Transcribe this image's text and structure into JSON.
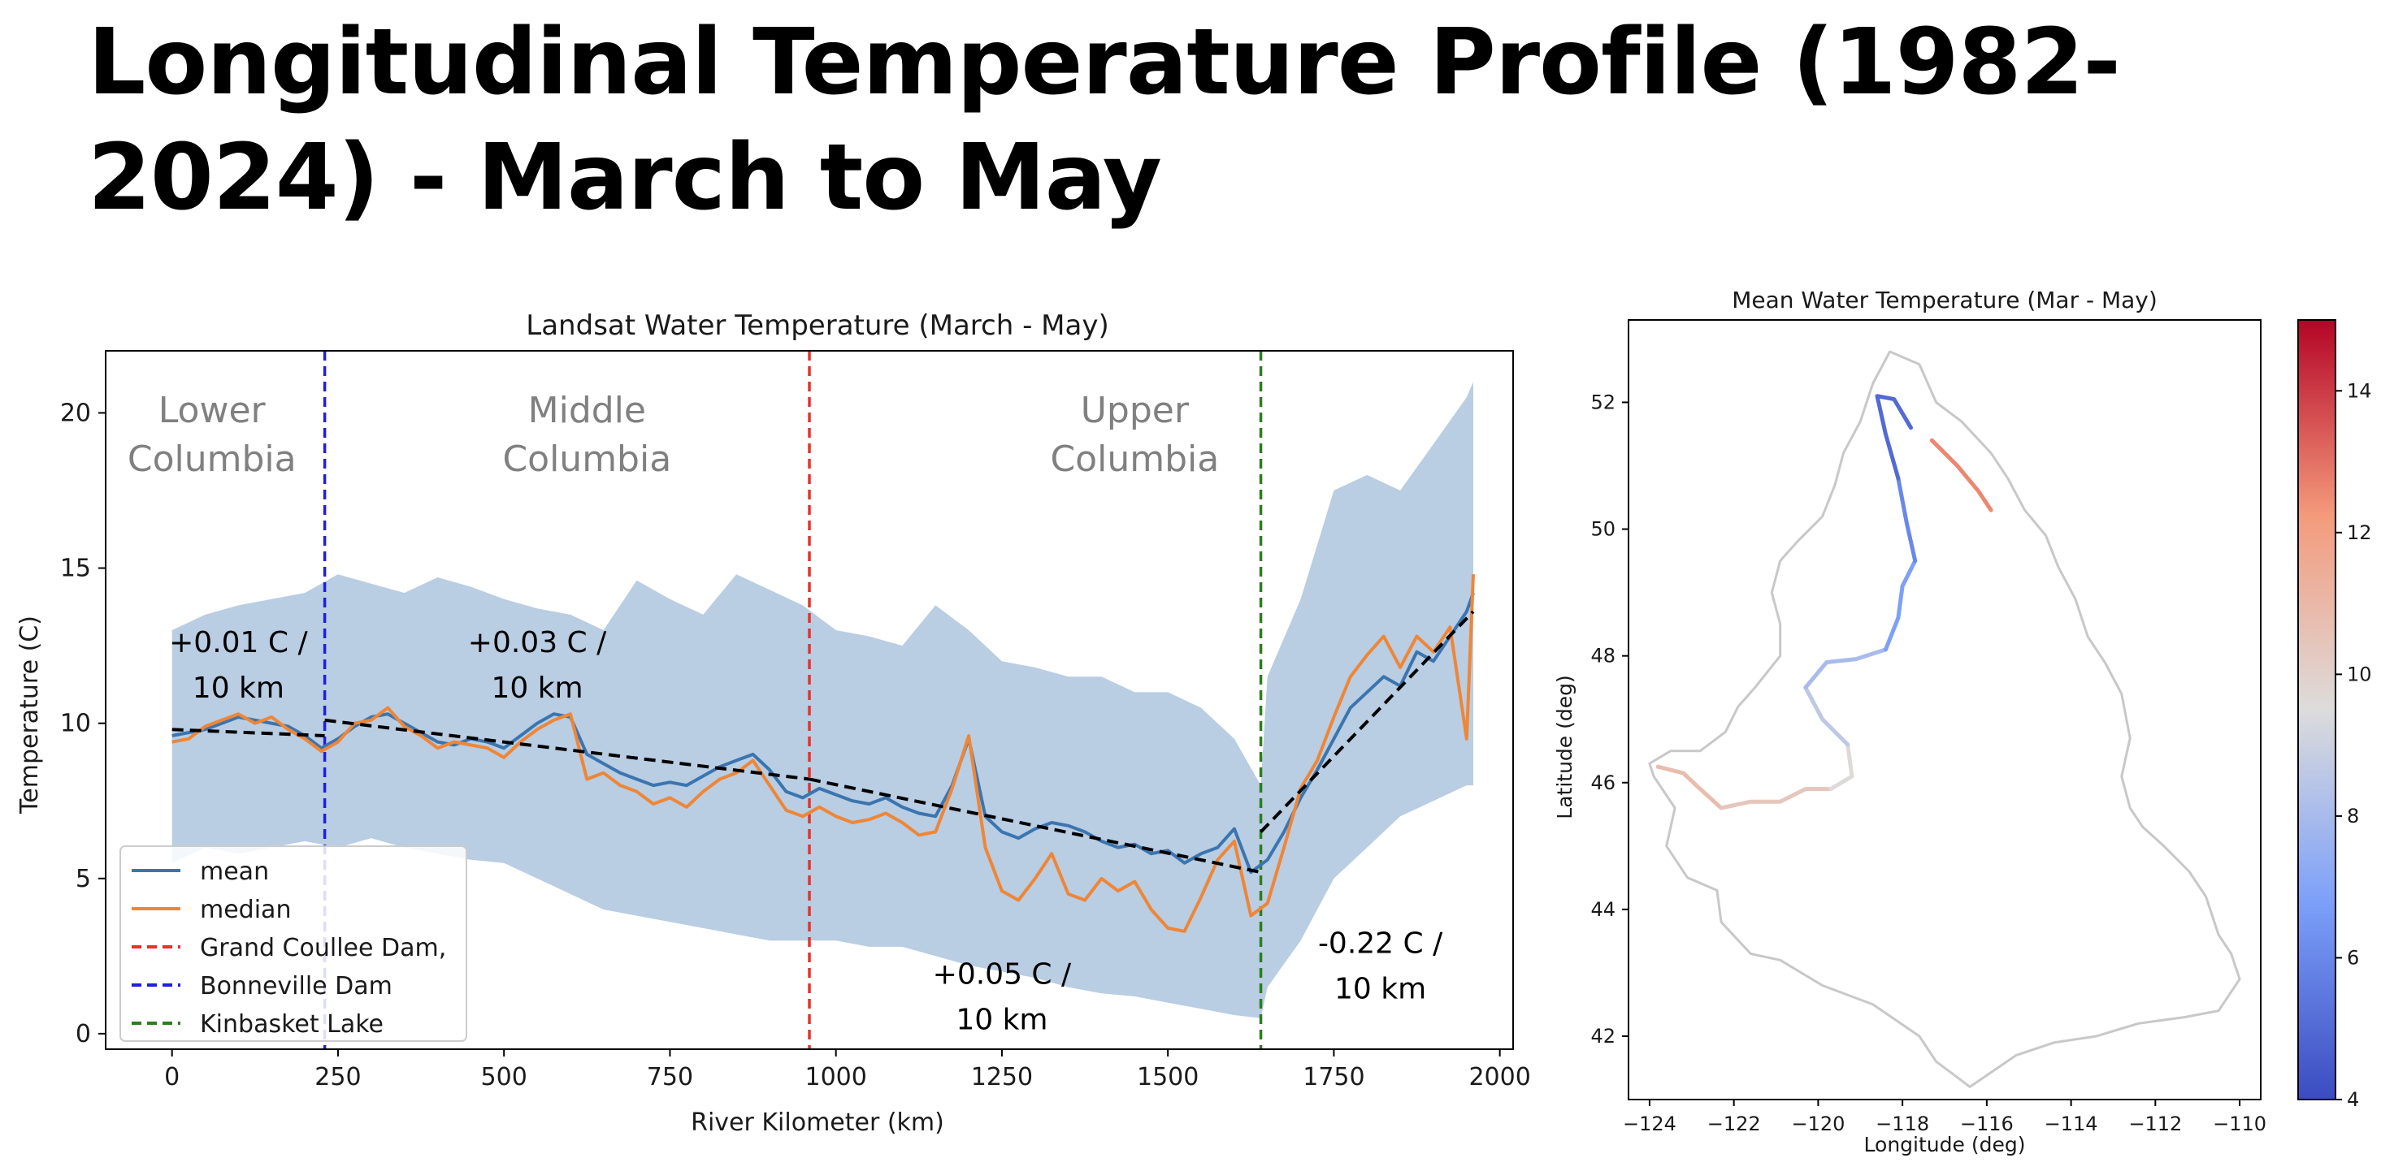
{
  "slide": {
    "title": "Longitudinal Temperature Profile (1982-2024) - March to May"
  },
  "colors": {
    "mean": "#3b75af",
    "median": "#ef8636",
    "band": "#b9cde3",
    "grand_coulee": "#e8322a",
    "bonneville": "#1f1fe0",
    "kinbasket": "#2e7d1e",
    "trend": "#000000",
    "region_label": "#808080"
  },
  "chart_data": [
    {
      "type": "line",
      "title": "Landsat Water Temperature (March - May)",
      "xlabel": "River Kilometer (km)",
      "ylabel": "Temperature (C)",
      "xlim": [
        -100,
        2020
      ],
      "ylim": [
        -0.5,
        22
      ],
      "xticks": [
        0,
        250,
        500,
        750,
        1000,
        1250,
        1500,
        1750,
        2000
      ],
      "yticks": [
        0,
        5,
        10,
        15,
        20
      ],
      "legend_position": "lower-left",
      "legend": [
        "mean",
        "median",
        "Grand Coullee Dam,",
        "Bonneville Dam",
        "Kinbasket Lake"
      ],
      "series": [
        {
          "name": "mean",
          "x": [
            0,
            25,
            50,
            75,
            100,
            125,
            150,
            175,
            200,
            225,
            250,
            275,
            300,
            325,
            350,
            375,
            400,
            425,
            450,
            475,
            500,
            525,
            550,
            575,
            600,
            625,
            650,
            675,
            700,
            725,
            750,
            775,
            800,
            825,
            850,
            875,
            900,
            925,
            950,
            975,
            1000,
            1025,
            1050,
            1075,
            1100,
            1125,
            1150,
            1175,
            1200,
            1225,
            1250,
            1275,
            1300,
            1325,
            1350,
            1375,
            1400,
            1425,
            1450,
            1475,
            1500,
            1525,
            1550,
            1575,
            1600,
            1625,
            1650,
            1675,
            1700,
            1725,
            1750,
            1775,
            1800,
            1825,
            1850,
            1875,
            1900,
            1925,
            1950,
            1960
          ],
          "values": [
            9.6,
            9.7,
            9.8,
            10.0,
            10.2,
            10.1,
            10.0,
            9.9,
            9.6,
            9.2,
            9.5,
            9.9,
            10.2,
            10.3,
            10.0,
            9.7,
            9.4,
            9.3,
            9.5,
            9.4,
            9.2,
            9.6,
            10.0,
            10.3,
            10.2,
            9.0,
            8.7,
            8.4,
            8.2,
            8.0,
            8.1,
            8.0,
            8.3,
            8.6,
            8.8,
            9.0,
            8.5,
            7.8,
            7.6,
            7.9,
            7.7,
            7.5,
            7.4,
            7.6,
            7.3,
            7.1,
            7.0,
            8.0,
            9.5,
            7.0,
            6.5,
            6.3,
            6.6,
            6.8,
            6.7,
            6.5,
            6.2,
            6.0,
            6.1,
            5.8,
            5.9,
            5.5,
            5.8,
            6.0,
            6.6,
            5.2,
            5.6,
            6.5,
            7.6,
            8.5,
            9.5,
            10.5,
            11.0,
            11.5,
            11.2,
            12.3,
            12.0,
            12.8,
            13.6,
            14.2
          ]
        },
        {
          "name": "median",
          "x": [
            0,
            25,
            50,
            75,
            100,
            125,
            150,
            175,
            200,
            225,
            250,
            275,
            300,
            325,
            350,
            375,
            400,
            425,
            450,
            475,
            500,
            525,
            550,
            575,
            600,
            625,
            650,
            675,
            700,
            725,
            750,
            775,
            800,
            825,
            850,
            875,
            900,
            925,
            950,
            975,
            1000,
            1025,
            1050,
            1075,
            1100,
            1125,
            1150,
            1175,
            1200,
            1225,
            1250,
            1275,
            1300,
            1325,
            1350,
            1375,
            1400,
            1425,
            1450,
            1475,
            1500,
            1525,
            1550,
            1575,
            1600,
            1625,
            1650,
            1675,
            1700,
            1725,
            1750,
            1775,
            1800,
            1825,
            1850,
            1875,
            1900,
            1925,
            1950,
            1960
          ],
          "values": [
            9.4,
            9.5,
            9.9,
            10.1,
            10.3,
            10.0,
            10.2,
            9.8,
            9.5,
            9.1,
            9.4,
            10.0,
            10.1,
            10.5,
            9.9,
            9.6,
            9.2,
            9.4,
            9.3,
            9.2,
            8.9,
            9.4,
            9.8,
            10.1,
            10.3,
            8.2,
            8.4,
            8.0,
            7.8,
            7.4,
            7.6,
            7.3,
            7.8,
            8.2,
            8.4,
            8.8,
            8.0,
            7.2,
            7.0,
            7.3,
            7.0,
            6.8,
            6.9,
            7.1,
            6.8,
            6.4,
            6.5,
            7.9,
            9.6,
            6.0,
            4.6,
            4.3,
            5.0,
            5.8,
            4.5,
            4.3,
            5.0,
            4.6,
            4.9,
            4.0,
            3.4,
            3.3,
            4.4,
            5.6,
            6.2,
            3.8,
            4.2,
            6.0,
            7.9,
            8.8,
            10.2,
            11.5,
            12.2,
            12.8,
            11.8,
            12.8,
            12.3,
            13.1,
            9.5,
            14.8
          ]
        }
      ],
      "band": {
        "name": "range",
        "x": [
          0,
          50,
          100,
          150,
          200,
          250,
          300,
          350,
          400,
          450,
          500,
          550,
          600,
          650,
          700,
          750,
          800,
          850,
          900,
          950,
          1000,
          1050,
          1100,
          1150,
          1200,
          1250,
          1300,
          1350,
          1400,
          1450,
          1500,
          1550,
          1600,
          1640,
          1650,
          1700,
          1750,
          1800,
          1850,
          1900,
          1950,
          1960
        ],
        "upper": [
          13.0,
          13.5,
          13.8,
          14.0,
          14.2,
          14.8,
          14.5,
          14.2,
          14.7,
          14.4,
          14.0,
          13.7,
          13.5,
          13.0,
          14.6,
          14.0,
          13.5,
          14.8,
          14.3,
          13.8,
          13.0,
          12.8,
          12.5,
          13.8,
          13.0,
          12.0,
          11.8,
          11.5,
          11.5,
          11.0,
          11.0,
          10.5,
          9.5,
          8.0,
          11.5,
          14.0,
          17.5,
          18.0,
          17.5,
          19.0,
          20.5,
          21.0
        ],
        "lower": [
          5.5,
          6.0,
          5.8,
          6.0,
          6.2,
          6.0,
          6.3,
          6.0,
          5.8,
          5.6,
          5.5,
          5.0,
          4.5,
          4.0,
          3.8,
          3.6,
          3.4,
          3.2,
          3.0,
          3.0,
          3.0,
          2.8,
          2.8,
          2.5,
          2.2,
          2.0,
          1.8,
          1.5,
          1.3,
          1.2,
          1.0,
          0.8,
          0.6,
          0.5,
          1.5,
          3.0,
          5.0,
          6.0,
          7.0,
          7.5,
          8.0,
          8.0
        ]
      },
      "vlines": [
        {
          "name": "Bonneville Dam",
          "x": 230,
          "color": "#1f1fe0"
        },
        {
          "name": "Grand Coullee Dam,",
          "x": 960,
          "color": "#e8322a"
        },
        {
          "name": "Kinbasket Lake",
          "x": 1640,
          "color": "#2e7d1e"
        }
      ],
      "trends": [
        {
          "x": [
            0,
            230
          ],
          "y": [
            9.8,
            9.6
          ]
        },
        {
          "x": [
            230,
            960
          ],
          "y": [
            10.1,
            8.2
          ]
        },
        {
          "x": [
            960,
            1640
          ],
          "y": [
            8.2,
            5.2
          ]
        },
        {
          "x": [
            1640,
            1960
          ],
          "y": [
            6.5,
            13.6
          ]
        }
      ],
      "region_labels": [
        {
          "lines": [
            "Lower",
            "Columbia"
          ],
          "x": 60,
          "y": 19.7
        },
        {
          "lines": [
            "Middle",
            "Columbia"
          ],
          "x": 625,
          "y": 19.7
        },
        {
          "lines": [
            "Upper",
            "Columbia"
          ],
          "x": 1450,
          "y": 19.7
        }
      ],
      "annotations": [
        {
          "lines": [
            "+0.01 C /",
            "10 km"
          ],
          "x": 100,
          "y": 12.3
        },
        {
          "lines": [
            "+0.03 C /",
            "10 km"
          ],
          "x": 550,
          "y": 12.3
        },
        {
          "lines": [
            "+0.05 C /",
            "10 km"
          ],
          "x": 1250,
          "y": 1.6
        },
        {
          "lines": [
            "-0.22 C /",
            "10 km"
          ],
          "x": 1820,
          "y": 2.6
        }
      ]
    },
    {
      "type": "map",
      "title": "Mean Water Temperature (Mar - May)",
      "xlabel": "Longitude (deg)",
      "ylabel": "Latitude (deg)",
      "xlim": [
        -124.5,
        -109.5
      ],
      "ylim": [
        41.0,
        53.3
      ],
      "xticks": [
        -124,
        -122,
        -120,
        -118,
        -116,
        -114,
        -112,
        -110
      ],
      "yticks": [
        42,
        44,
        46,
        48,
        50,
        52
      ],
      "colorbar": {
        "min": 4,
        "max": 15,
        "ticks": [
          4,
          6,
          8,
          10,
          12,
          14
        ],
        "colormap": "coolwarm"
      },
      "basin_outline": [
        [
          -118.3,
          52.8
        ],
        [
          -117.6,
          52.6
        ],
        [
          -117.2,
          52.0
        ],
        [
          -116.6,
          51.7
        ],
        [
          -115.9,
          51.2
        ],
        [
          -115.5,
          50.8
        ],
        [
          -115.1,
          50.3
        ],
        [
          -114.6,
          49.9
        ],
        [
          -114.3,
          49.4
        ],
        [
          -113.9,
          48.9
        ],
        [
          -113.6,
          48.3
        ],
        [
          -113.2,
          47.9
        ],
        [
          -112.8,
          47.4
        ],
        [
          -112.6,
          46.7
        ],
        [
          -112.8,
          46.1
        ],
        [
          -112.6,
          45.6
        ],
        [
          -112.3,
          45.3
        ],
        [
          -111.8,
          45.0
        ],
        [
          -111.2,
          44.6
        ],
        [
          -110.8,
          44.2
        ],
        [
          -110.5,
          43.6
        ],
        [
          -110.2,
          43.3
        ],
        [
          -110.0,
          42.9
        ],
        [
          -110.5,
          42.4
        ],
        [
          -111.3,
          42.3
        ],
        [
          -112.4,
          42.2
        ],
        [
          -113.4,
          42.0
        ],
        [
          -114.4,
          41.9
        ],
        [
          -115.3,
          41.7
        ],
        [
          -116.4,
          41.2
        ],
        [
          -117.2,
          41.6
        ],
        [
          -117.6,
          42.0
        ],
        [
          -118.7,
          42.5
        ],
        [
          -119.9,
          42.8
        ],
        [
          -120.9,
          43.2
        ],
        [
          -121.6,
          43.3
        ],
        [
          -122.3,
          43.8
        ],
        [
          -122.4,
          44.3
        ],
        [
          -123.1,
          44.5
        ],
        [
          -123.6,
          45.0
        ],
        [
          -123.4,
          45.6
        ],
        [
          -123.9,
          46.1
        ],
        [
          -124.0,
          46.3
        ],
        [
          -123.5,
          46.5
        ],
        [
          -122.8,
          46.5
        ],
        [
          -122.2,
          46.8
        ],
        [
          -121.9,
          47.2
        ],
        [
          -121.5,
          47.5
        ],
        [
          -120.9,
          48.0
        ],
        [
          -120.9,
          48.5
        ],
        [
          -121.1,
          49.0
        ],
        [
          -120.9,
          49.5
        ],
        [
          -120.5,
          49.8
        ],
        [
          -119.9,
          50.2
        ],
        [
          -119.6,
          50.7
        ],
        [
          -119.4,
          51.2
        ],
        [
          -119.0,
          51.7
        ],
        [
          -118.7,
          52.3
        ],
        [
          -118.3,
          52.8
        ]
      ],
      "river_segments": [
        {
          "temp": 10.8,
          "points": [
            [
              -123.8,
              46.25
            ],
            [
              -123.2,
              46.15
            ],
            [
              -122.8,
              45.9
            ],
            [
              -122.3,
              45.6
            ]
          ]
        },
        {
          "temp": 10.4,
          "points": [
            [
              -122.3,
              45.6
            ],
            [
              -121.6,
              45.7
            ],
            [
              -120.9,
              45.7
            ],
            [
              -120.3,
              45.9
            ],
            [
              -119.7,
              45.9
            ]
          ]
        },
        {
          "temp": 9.6,
          "points": [
            [
              -119.7,
              45.9
            ],
            [
              -119.2,
              46.1
            ],
            [
              -119.3,
              46.6
            ]
          ]
        },
        {
          "temp": 8.6,
          "points": [
            [
              -119.3,
              46.6
            ],
            [
              -119.9,
              47.0
            ],
            [
              -120.3,
              47.5
            ]
          ]
        },
        {
          "temp": 8.0,
          "points": [
            [
              -120.3,
              47.5
            ],
            [
              -119.8,
              47.9
            ],
            [
              -119.1,
              47.95
            ],
            [
              -118.4,
              48.1
            ]
          ]
        },
        {
          "temp": 6.8,
          "points": [
            [
              -118.4,
              48.1
            ],
            [
              -118.1,
              48.6
            ],
            [
              -118.0,
              49.1
            ],
            [
              -117.7,
              49.5
            ]
          ]
        },
        {
          "temp": 6.0,
          "points": [
            [
              -117.7,
              49.5
            ],
            [
              -117.9,
              50.1
            ],
            [
              -118.1,
              50.8
            ]
          ]
        },
        {
          "temp": 5.0,
          "points": [
            [
              -118.1,
              50.8
            ],
            [
              -118.4,
              51.5
            ],
            [
              -118.6,
              52.1
            ],
            [
              -118.2,
              52.05
            ],
            [
              -117.8,
              51.6
            ]
          ]
        },
        {
          "temp": 12.6,
          "points": [
            [
              -117.3,
              51.4
            ],
            [
              -116.7,
              51.0
            ],
            [
              -116.2,
              50.6
            ],
            [
              -115.9,
              50.3
            ]
          ]
        }
      ]
    }
  ]
}
